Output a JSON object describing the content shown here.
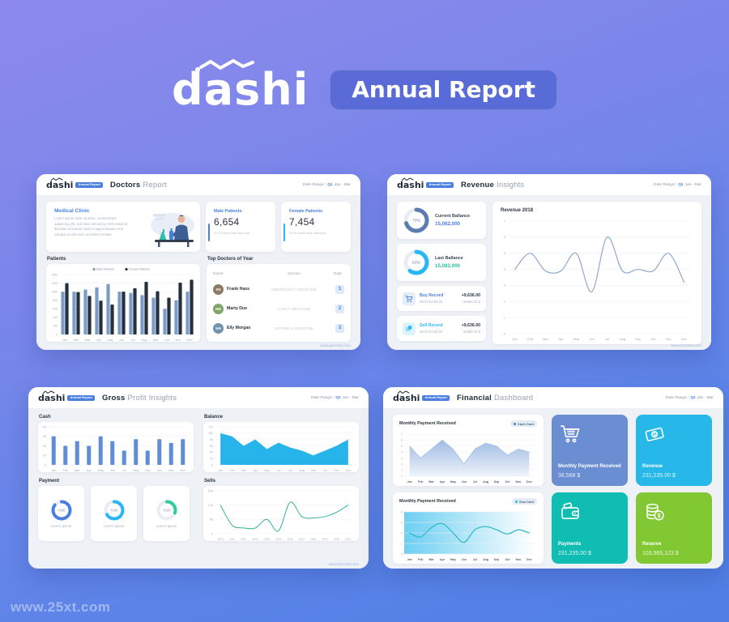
{
  "page": {
    "watermark": "www.25xt.com"
  },
  "hero": {
    "logo": "dashi",
    "badge": "Annual Report"
  },
  "panel_common": {
    "logo": "dashi",
    "logo_badge": "Annual Report",
    "date_label": "Date Range :",
    "date_q": "Q1",
    "date_rest": "Jan - Mar",
    "footer": "www.premast.com"
  },
  "doctors": {
    "title_bold": "Doctors",
    "title_rest": "Report",
    "clinic": {
      "title": "Medical Clinic",
      "body": "Lorem ipsum dolor sit amet, consectetuer adipiscing elit, sed diam nonummy nibh euismod tincidunt ut laoreet dolore magna aliquam erat volutpat ut wisi enim ad minim veniam."
    },
    "male": {
      "label": "Male Patients",
      "value": "6,654",
      "note": "20 % More than last year",
      "accent": "#4a7fe0"
    },
    "female": {
      "label": "Female Patients",
      "value": "7,454",
      "note": "30 % below than last year",
      "accent": "#29b6f6"
    },
    "patients_label": "Patients",
    "top_doctors": {
      "title": "Top Doctors of Year",
      "headers": [
        "Name",
        "Section",
        "Rate"
      ],
      "rows": [
        {
          "initials": "FH",
          "name": "Frank Hass",
          "section": "EMERGENCY MEDICINE",
          "rate": "1",
          "avatar_color": "#8d7b68"
        },
        {
          "initials": "MD",
          "name": "Marty Due",
          "section": "FAMILY MEDICINE",
          "rate": "2",
          "avatar_color": "#7fa568"
        },
        {
          "initials": "EM",
          "name": "Elly Morgan",
          "section": "INTERNAL MEDICINE",
          "rate": "3",
          "avatar_color": "#6f93ad"
        }
      ]
    }
  },
  "revenue": {
    "title_bold": "Revenue",
    "title_rest": "Insights",
    "current": {
      "label": "Current Ballance",
      "value": "15,082,000",
      "value_color": "#4a7fe0"
    },
    "last": {
      "label": "Last Ballance",
      "value": "15,082,000",
      "value_color": "#2abfa4"
    },
    "buy": {
      "label": "Buy Record",
      "time": "09-23 03:53:25",
      "amount": "+9,636.00",
      "total": "50666.25 $",
      "label_color": "#4a7fe0"
    },
    "sell": {
      "label": "Sell Record",
      "time": "09-23 03:53:25",
      "amount": "+9,636.00",
      "total": "50666.25 $",
      "label_color": "#29b6f6"
    },
    "chart_title": "Revenue 2018"
  },
  "gross": {
    "title_bold": "Gross",
    "title_rest": "Profit Insights",
    "cash_label": "Cash",
    "balance_label": "Balance",
    "payment_label": "Payment",
    "sells_label": "Sells",
    "payment_donuts": [
      {
        "caption": "Lorem Ipsum"
      },
      {
        "caption": "Lorem Ipsum"
      },
      {
        "caption": "Lorem Ipsum"
      }
    ]
  },
  "financial": {
    "title_bold": "Financial",
    "title_rest": "Dashboard",
    "cash_chart": {
      "title": "Monthly Payment Received",
      "badge": "Cash Card",
      "badge_dot": "#4a7fe0"
    },
    "visa_chart": {
      "title": "Monthly Payment Received",
      "badge": "Visa Card",
      "badge_dot": "#29b6f6"
    },
    "cards": [
      {
        "label": "Monthly Payment Received",
        "value": "36,568 $",
        "color": "#6b8ed2"
      },
      {
        "label": "Revenue",
        "value": "231,235.00 $",
        "color": "#25b8e8"
      },
      {
        "label": "Payments",
        "value": "231,235.00 $",
        "color": "#10bdb2"
      },
      {
        "label": "Reserve",
        "value": "103,565,123 $",
        "color": "#82c832"
      }
    ]
  },
  "chart_data": [
    {
      "id": "patients",
      "type": "bar",
      "legend": true,
      "title": "Patients",
      "categories": [
        "Jan",
        "Feb",
        "Mar",
        "Apr",
        "May",
        "Jun",
        "Jul",
        "Aug",
        "Sep",
        "Oct",
        "Nov",
        "Dec"
      ],
      "series": [
        {
          "name": "Male Patients",
          "color": "#7b9cc9",
          "values": [
            1000,
            1000,
            1050,
            1100,
            1180,
            1000,
            970,
            920,
            860,
            600,
            800,
            1000
          ]
        },
        {
          "name": "Female Patients",
          "color": "#25303e",
          "values": [
            1200,
            990,
            900,
            790,
            700,
            1000,
            1080,
            1230,
            1010,
            860,
            1210,
            1280
          ]
        }
      ],
      "ylim": [
        0,
        1400
      ],
      "ytick": 200,
      "barw": 4.2,
      "ml": 16,
      "mt": 13,
      "yfont": 3.4,
      "xfont": 3.8
    },
    {
      "id": "revenue2018",
      "type": "line",
      "smooth": true,
      "title": "Revenue 2018",
      "categories": [
        "Jan",
        "Feb",
        "Mar",
        "Apr",
        "May",
        "Jun",
        "Jul",
        "Aug",
        "Sep",
        "Oct",
        "Nov",
        "Dec"
      ],
      "values": [
        4,
        5,
        3.9,
        3.9,
        5,
        2.6,
        6,
        3.9,
        4,
        3.9,
        5,
        3.2
      ],
      "ylim": [
        0,
        7
      ],
      "ytick": 1,
      "stroke": "#8fa8cc",
      "strokew": 1.2,
      "ml": 12,
      "yfont": 4,
      "xfont": 4
    },
    {
      "id": "cash",
      "type": "bar",
      "title": "Cash",
      "categories": [
        "Jan",
        "Feb",
        "Mar",
        "Apr",
        "May",
        "Jun",
        "Jul",
        "Aug",
        "Sep",
        "Oct",
        "Nov",
        "Dec"
      ],
      "color": "#5f8ed6",
      "values": [
        30,
        20,
        25,
        20,
        30,
        25,
        15,
        27,
        15,
        27,
        23,
        27
      ],
      "ylim": [
        0,
        40
      ],
      "ytick": 10,
      "barw": 5,
      "ml": 12,
      "yfont": 3.8,
      "xfont": 3.8
    },
    {
      "id": "balance",
      "type": "area",
      "title": "Balance",
      "categories": [
        "Jan",
        "Feb",
        "Mar",
        "Apr",
        "May",
        "Jun",
        "Jul",
        "Aug",
        "Sep",
        "Oct",
        "Nov",
        "Dec"
      ],
      "values": [
        100,
        90,
        60,
        80,
        50,
        70,
        55,
        45,
        30,
        45,
        60,
        80
      ],
      "ylim": [
        0,
        120
      ],
      "ytick": 20,
      "fill": "#27b4ea",
      "ml": 14,
      "yfont": 3.6,
      "xfont": 3.6
    },
    {
      "id": "sells",
      "type": "line",
      "smooth": true,
      "title": "Sells",
      "categories": [
        "2010",
        "2011",
        "2012",
        "2013",
        "2014",
        "2015",
        "2016",
        "2017",
        "2018",
        "2019",
        "2020",
        "2021"
      ],
      "values": [
        100,
        30,
        20,
        20,
        50,
        10,
        110,
        60,
        55,
        60,
        75,
        100
      ],
      "ylim": [
        0,
        150
      ],
      "ytick": 50,
      "stroke": "#35b39a",
      "strokew": 1,
      "ml": 14,
      "yfont": 3.8,
      "xfont": 3.2
    },
    {
      "id": "fincash",
      "type": "area",
      "title": "Monthly Payment Received (Cash Card)",
      "categories": [
        "Jan",
        "Feb",
        "Mar",
        "Apr",
        "May",
        "Jun",
        "Jul",
        "Aug",
        "Sep",
        "Oct",
        "Nov",
        "Dec"
      ],
      "values": [
        5,
        3,
        4.5,
        6,
        4.5,
        2,
        4.5,
        5.5,
        5,
        3.5,
        4.5,
        4
      ],
      "ylim": [
        0,
        7
      ],
      "ytick": 1,
      "fillGradient": [
        "#9fbce4",
        "#eef3fa"
      ],
      "stroke": "#a3bce0",
      "strokew": 0.8,
      "ml": 9,
      "mt": 4,
      "yfont": 3.3,
      "xfont": 3.6,
      "xcolor": "#5a6472",
      "xbold": true
    },
    {
      "id": "finvisa",
      "type": "line",
      "smooth": true,
      "title": "Monthly Payment Received (Visa Card)",
      "categories": [
        "Jan",
        "Feb",
        "Mar",
        "Apr",
        "May",
        "Jun",
        "Jul",
        "Aug",
        "Sep",
        "Oct",
        "Nov",
        "Dec"
      ],
      "values": [
        4,
        3.2,
        5,
        5.8,
        4,
        2.2,
        4.6,
        5.2,
        4.6,
        3.8,
        4.6,
        4
      ],
      "ylim": [
        0,
        8
      ],
      "ytick": 2,
      "stroke": "#28b7c8",
      "strokew": 1.2,
      "bgGradientH": [
        "#49c3ef",
        "#ffffff"
      ],
      "ml": 9,
      "mt": 4,
      "yfont": 3.3,
      "xfont": 3.6,
      "xcolor": "#5a6472",
      "xbold": true
    },
    {
      "id": "donut-current",
      "type": "donut",
      "pct": 70,
      "color": "#5d7db2",
      "track": "#e9edf3",
      "text": "70%",
      "strokew": 5,
      "tsize": 5
    },
    {
      "id": "donut-last",
      "type": "donut",
      "pct": 60,
      "color": "#29b6f6",
      "track": "#e9edf3",
      "text": "60%",
      "strokew": 5,
      "tsize": 5
    },
    {
      "id": "donut-p0",
      "type": "donut",
      "pct": 85,
      "color": "#4a7fe0",
      "track": "#e9edf3",
      "text": "%85",
      "strokew": 4,
      "tsize": 4.6
    },
    {
      "id": "donut-p1",
      "type": "donut",
      "pct": 66,
      "color": "#29b6f6",
      "track": "#e9edf3",
      "text": "%66",
      "strokew": 4,
      "tsize": 4.6
    },
    {
      "id": "donut-p2",
      "type": "donut",
      "pct": 30,
      "color": "#2ecc9a",
      "track": "#e9edf3",
      "text": "%30",
      "strokew": 4,
      "tsize": 4.6
    }
  ]
}
